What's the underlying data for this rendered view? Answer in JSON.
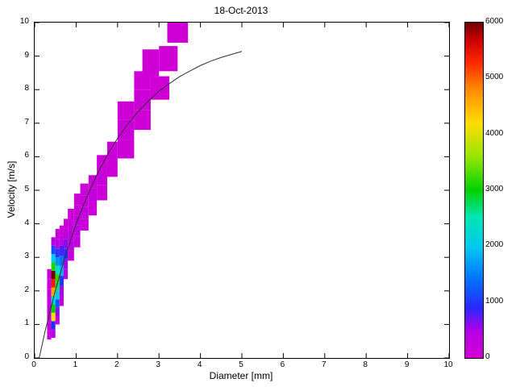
{
  "chart_data": {
    "type": "heatmap",
    "title": "18-Oct-2013",
    "xlabel": "Diameter [mm]",
    "ylabel": "Velocity [m/s]",
    "xlim": [
      0,
      10
    ],
    "ylim": [
      0,
      10
    ],
    "xticks": [
      0,
      1,
      2,
      3,
      4,
      5,
      6,
      7,
      8,
      9,
      10
    ],
    "yticks": [
      0,
      1,
      2,
      3,
      4,
      5,
      6,
      7,
      8,
      9,
      10
    ],
    "grid": false,
    "legend": "none",
    "colorbar": {
      "position": "right",
      "min": 0,
      "max": 6000,
      "ticks": [
        0,
        1000,
        2000,
        3000,
        4000,
        5000,
        6000
      ]
    },
    "colormap_stops": [
      {
        "t": 0.0,
        "color": "#D200D2"
      },
      {
        "t": 0.08,
        "color": "#B400E6"
      },
      {
        "t": 0.15,
        "color": "#2828FF"
      },
      {
        "t": 0.24,
        "color": "#0078FF"
      },
      {
        "t": 0.33,
        "color": "#00C8F0"
      },
      {
        "t": 0.42,
        "color": "#00E6B4"
      },
      {
        "t": 0.5,
        "color": "#00D200"
      },
      {
        "t": 0.6,
        "color": "#96E600"
      },
      {
        "t": 0.7,
        "color": "#FFDC00"
      },
      {
        "t": 0.8,
        "color": "#FF8C00"
      },
      {
        "t": 0.88,
        "color": "#FF2800"
      },
      {
        "t": 0.95,
        "color": "#C80000"
      },
      {
        "t": 1.0,
        "color": "#6E0000"
      }
    ],
    "cell_format": [
      "d_min",
      "d_max",
      "v_min",
      "v_max",
      "count"
    ],
    "cells": [
      [
        0.3,
        0.4,
        0.55,
        0.8,
        200
      ],
      [
        0.3,
        0.4,
        0.8,
        1.05,
        350
      ],
      [
        0.3,
        0.4,
        1.05,
        1.3,
        320
      ],
      [
        0.3,
        0.4,
        1.3,
        1.55,
        280
      ],
      [
        0.3,
        0.4,
        1.55,
        1.8,
        230
      ],
      [
        0.3,
        0.4,
        1.8,
        2.05,
        180
      ],
      [
        0.3,
        0.4,
        2.05,
        2.35,
        120
      ],
      [
        0.3,
        0.4,
        2.35,
        2.65,
        70
      ],
      [
        0.4,
        0.5,
        0.6,
        0.85,
        400
      ],
      [
        0.4,
        0.5,
        0.85,
        1.1,
        900
      ],
      [
        0.4,
        0.5,
        1.1,
        1.35,
        4200
      ],
      [
        0.4,
        0.5,
        1.35,
        1.6,
        3000
      ],
      [
        0.4,
        0.5,
        1.6,
        1.85,
        2200
      ],
      [
        0.4,
        0.5,
        1.85,
        2.1,
        4600
      ],
      [
        0.4,
        0.5,
        2.1,
        2.35,
        5400
      ],
      [
        0.4,
        0.5,
        2.35,
        2.6,
        6000
      ],
      [
        0.4,
        0.5,
        2.6,
        2.85,
        3100
      ],
      [
        0.4,
        0.5,
        2.85,
        3.1,
        2000
      ],
      [
        0.4,
        0.5,
        3.1,
        3.35,
        1100
      ],
      [
        0.4,
        0.5,
        3.35,
        3.6,
        400
      ],
      [
        0.5,
        0.6,
        1.0,
        1.25,
        250
      ],
      [
        0.5,
        0.6,
        1.25,
        1.5,
        600
      ],
      [
        0.5,
        0.6,
        1.5,
        1.75,
        1200
      ],
      [
        0.5,
        0.6,
        1.75,
        2.0,
        2000
      ],
      [
        0.5,
        0.6,
        2.0,
        2.25,
        2700
      ],
      [
        0.5,
        0.6,
        2.25,
        2.5,
        3200
      ],
      [
        0.5,
        0.6,
        2.5,
        2.75,
        2400
      ],
      [
        0.5,
        0.6,
        2.75,
        3.0,
        1600
      ],
      [
        0.5,
        0.6,
        3.0,
        3.25,
        1000
      ],
      [
        0.5,
        0.6,
        3.25,
        3.55,
        450
      ],
      [
        0.5,
        0.6,
        3.55,
        3.85,
        180
      ],
      [
        0.6,
        0.7,
        1.55,
        1.85,
        250
      ],
      [
        0.6,
        0.7,
        1.85,
        2.15,
        500
      ],
      [
        0.6,
        0.7,
        2.15,
        2.45,
        1000
      ],
      [
        0.6,
        0.7,
        2.45,
        2.75,
        1800
      ],
      [
        0.6,
        0.7,
        2.75,
        3.05,
        1400
      ],
      [
        0.6,
        0.7,
        3.05,
        3.35,
        800
      ],
      [
        0.6,
        0.7,
        3.35,
        3.65,
        350
      ],
      [
        0.6,
        0.7,
        3.65,
        3.95,
        140
      ],
      [
        0.7,
        0.8,
        2.35,
        2.65,
        280
      ],
      [
        0.7,
        0.8,
        2.65,
        2.95,
        550
      ],
      [
        0.7,
        0.8,
        2.95,
        3.25,
        950
      ],
      [
        0.7,
        0.8,
        3.25,
        3.55,
        600
      ],
      [
        0.7,
        0.8,
        3.55,
        3.85,
        300
      ],
      [
        0.7,
        0.8,
        3.85,
        4.15,
        130
      ],
      [
        0.8,
        0.95,
        2.9,
        3.2,
        240
      ],
      [
        0.8,
        0.95,
        3.2,
        3.5,
        430
      ],
      [
        0.8,
        0.95,
        3.5,
        3.8,
        340
      ],
      [
        0.8,
        0.95,
        3.8,
        4.1,
        230
      ],
      [
        0.8,
        0.95,
        4.1,
        4.45,
        110
      ],
      [
        0.95,
        1.1,
        3.3,
        3.65,
        200
      ],
      [
        0.95,
        1.1,
        3.65,
        3.95,
        330
      ],
      [
        0.95,
        1.1,
        3.95,
        4.25,
        280
      ],
      [
        0.95,
        1.1,
        4.25,
        4.55,
        170
      ],
      [
        0.95,
        1.1,
        4.55,
        4.9,
        80
      ],
      [
        1.1,
        1.3,
        3.8,
        4.15,
        150
      ],
      [
        1.1,
        1.3,
        4.15,
        4.5,
        260
      ],
      [
        1.1,
        1.3,
        4.5,
        4.85,
        200
      ],
      [
        1.1,
        1.3,
        4.85,
        5.2,
        100
      ],
      [
        1.3,
        1.5,
        4.25,
        4.65,
        140
      ],
      [
        1.3,
        1.5,
        4.65,
        5.05,
        230
      ],
      [
        1.3,
        1.5,
        5.05,
        5.45,
        120
      ],
      [
        1.5,
        1.75,
        4.7,
        5.15,
        110
      ],
      [
        1.5,
        1.75,
        5.15,
        5.6,
        190
      ],
      [
        1.5,
        1.75,
        5.6,
        6.05,
        100
      ],
      [
        1.75,
        2.0,
        5.4,
        5.9,
        120
      ],
      [
        1.75,
        2.0,
        5.9,
        6.45,
        150
      ],
      [
        2.0,
        2.4,
        5.95,
        6.5,
        90
      ],
      [
        2.0,
        2.4,
        6.5,
        7.1,
        140
      ],
      [
        2.0,
        2.4,
        7.1,
        7.65,
        80
      ],
      [
        2.4,
        2.8,
        6.8,
        7.4,
        75
      ],
      [
        2.4,
        2.8,
        7.4,
        8.0,
        110
      ],
      [
        2.4,
        2.8,
        8.0,
        8.55,
        60
      ],
      [
        2.8,
        3.25,
        7.7,
        8.4,
        60
      ],
      [
        2.6,
        3.0,
        8.4,
        9.2,
        70
      ],
      [
        3.0,
        3.45,
        8.55,
        9.3,
        55
      ],
      [
        3.2,
        3.7,
        9.4,
        10.0,
        65
      ]
    ],
    "curve": {
      "name": "terminal-fall-velocity-curve",
      "color": "#303030",
      "points": [
        [
          0.11,
          0.0
        ],
        [
          0.25,
          0.79
        ],
        [
          0.5,
          2.02
        ],
        [
          0.75,
          3.08
        ],
        [
          1.0,
          4.0
        ],
        [
          1.25,
          4.78
        ],
        [
          1.5,
          5.46
        ],
        [
          1.75,
          6.05
        ],
        [
          2.0,
          6.55
        ],
        [
          2.25,
          6.98
        ],
        [
          2.5,
          7.35
        ],
        [
          2.75,
          7.67
        ],
        [
          3.0,
          7.95
        ],
        [
          3.25,
          8.18
        ],
        [
          3.5,
          8.39
        ],
        [
          3.75,
          8.56
        ],
        [
          4.0,
          8.72
        ],
        [
          4.25,
          8.85
        ],
        [
          4.5,
          8.96
        ],
        [
          4.75,
          9.05
        ],
        [
          5.0,
          9.14
        ]
      ]
    }
  }
}
